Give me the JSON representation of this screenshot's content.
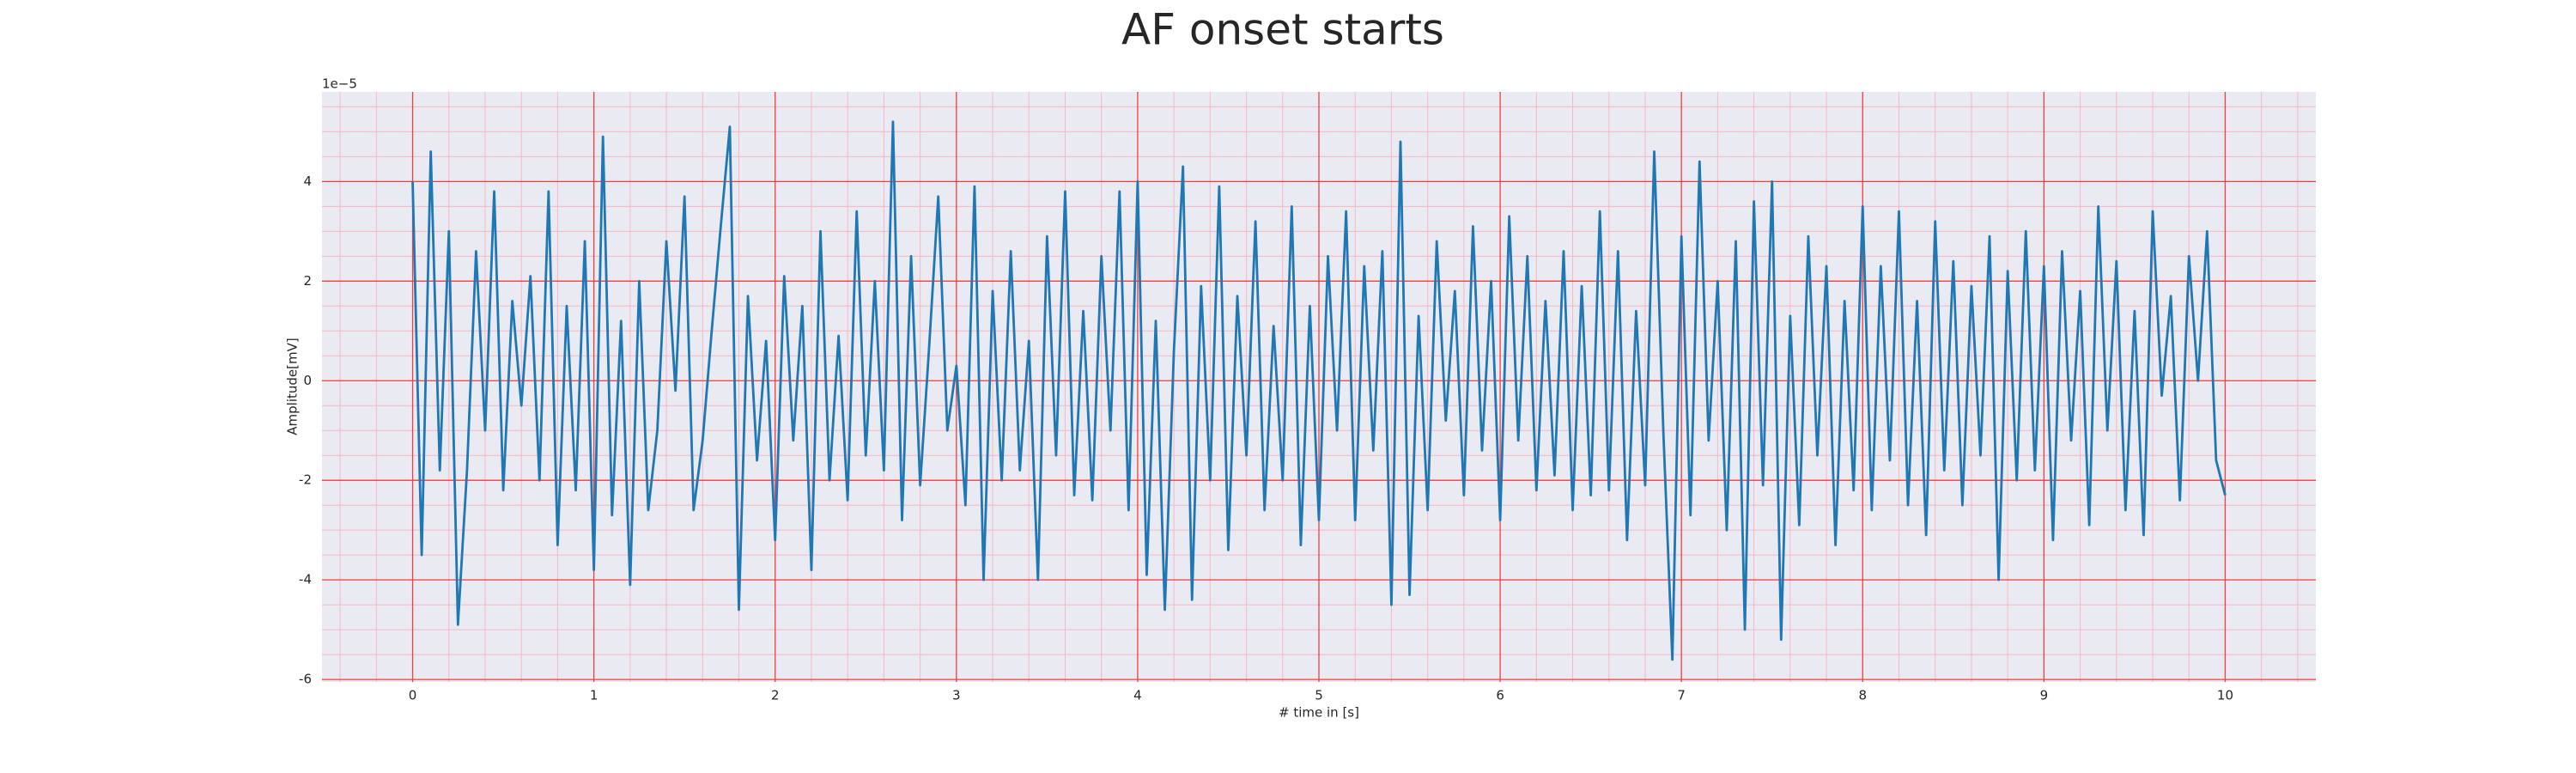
{
  "chart_data": {
    "type": "line",
    "title": "AF onset starts",
    "xlabel": "# time in [s]",
    "ylabel": "Amplitude[mV]",
    "y_offset_label": "1e−5",
    "color": "#1f77b4",
    "grid": true,
    "minor_grid": true,
    "xlim": [
      -0.5,
      10.5
    ],
    "ylim": [
      -6.05,
      5.8
    ],
    "xticks": [
      0,
      1,
      2,
      3,
      4,
      5,
      6,
      7,
      8,
      9,
      10
    ],
    "yticks": [
      -6,
      -4,
      -2,
      0,
      2,
      4
    ],
    "x": [
      0,
      0.05,
      0.1,
      0.15,
      0.2,
      0.25,
      0.3,
      0.35,
      0.4,
      0.45,
      0.5,
      0.55,
      0.6,
      0.65,
      0.7,
      0.75,
      0.8,
      0.85,
      0.9,
      0.95,
      1,
      1.05,
      1.1,
      1.15,
      1.2,
      1.25,
      1.3,
      1.35,
      1.4,
      1.45,
      1.5,
      1.55,
      1.6,
      1.65,
      1.7,
      1.75,
      1.8,
      1.85,
      1.9,
      1.95,
      2,
      2.05,
      2.1,
      2.15,
      2.2,
      2.25,
      2.3,
      2.35,
      2.4,
      2.45,
      2.5,
      2.55,
      2.6,
      2.65,
      2.7,
      2.75,
      2.8,
      2.85,
      2.9,
      2.95,
      3,
      3.05,
      3.1,
      3.15,
      3.2,
      3.25,
      3.3,
      3.35,
      3.4,
      3.45,
      3.5,
      3.55,
      3.6,
      3.65,
      3.7,
      3.75,
      3.8,
      3.85,
      3.9,
      3.95,
      4,
      4.05,
      4.1,
      4.15,
      4.2,
      4.25,
      4.3,
      4.35,
      4.4,
      4.45,
      4.5,
      4.55,
      4.6,
      4.65,
      4.7,
      4.75,
      4.8,
      4.85,
      4.9,
      4.95,
      5,
      5.05,
      5.1,
      5.15,
      5.2,
      5.25,
      5.3,
      5.35,
      5.4,
      5.45,
      5.5,
      5.55,
      5.6,
      5.65,
      5.7,
      5.75,
      5.8,
      5.85,
      5.9,
      5.95,
      6,
      6.05,
      6.1,
      6.15,
      6.2,
      6.25,
      6.3,
      6.35,
      6.4,
      6.45,
      6.5,
      6.55,
      6.6,
      6.65,
      6.7,
      6.75,
      6.8,
      6.85,
      6.9,
      6.95,
      7,
      7.05,
      7.1,
      7.15,
      7.2,
      7.25,
      7.3,
      7.35,
      7.4,
      7.45,
      7.5,
      7.55,
      7.6,
      7.65,
      7.7,
      7.75,
      7.8,
      7.85,
      7.9,
      7.95,
      8,
      8.05,
      8.1,
      8.15,
      8.2,
      8.25,
      8.3,
      8.35,
      8.4,
      8.45,
      8.5,
      8.55,
      8.6,
      8.65,
      8.7,
      8.75,
      8.8,
      8.85,
      8.9,
      8.95,
      9,
      9.05,
      9.1,
      9.15,
      9.2,
      9.25,
      9.3,
      9.35,
      9.4,
      9.45,
      9.5,
      9.55,
      9.6,
      9.65,
      9.7,
      9.75,
      9.8,
      9.85,
      9.9,
      9.95,
      10
    ],
    "values": [
      4.0,
      -3.5,
      4.6,
      -1.8,
      3.0,
      -4.9,
      -1.8,
      2.6,
      -1.0,
      3.8,
      -2.2,
      1.6,
      -0.5,
      2.1,
      -2.0,
      3.8,
      -3.3,
      1.5,
      -2.2,
      2.8,
      -3.8,
      4.9,
      -2.7,
      1.2,
      -4.1,
      2.0,
      -2.6,
      -1.0,
      2.8,
      -0.2,
      3.7,
      -2.6,
      -1.2,
      1.0,
      3.1,
      5.1,
      -4.6,
      1.7,
      -1.6,
      0.8,
      -3.2,
      2.1,
      -1.2,
      1.5,
      -3.8,
      3.0,
      -2.0,
      0.9,
      -2.4,
      3.4,
      -1.5,
      2.0,
      -1.8,
      5.2,
      -2.8,
      2.5,
      -2.1,
      0.7,
      3.7,
      -1.0,
      0.3,
      -2.5,
      3.9,
      -4.0,
      1.8,
      -2.0,
      2.6,
      -1.8,
      0.8,
      -4.0,
      2.9,
      -1.5,
      3.8,
      -2.3,
      1.4,
      -2.4,
      2.5,
      -1.0,
      3.8,
      -2.6,
      4.0,
      -3.9,
      1.2,
      -4.6,
      0.6,
      4.3,
      -4.4,
      1.9,
      -2.0,
      3.9,
      -3.4,
      1.7,
      -1.5,
      3.2,
      -2.6,
      1.1,
      -2.0,
      3.5,
      -3.3,
      1.5,
      -2.8,
      2.5,
      -1.0,
      3.4,
      -2.8,
      2.3,
      -1.4,
      2.6,
      -4.5,
      4.8,
      -4.3,
      1.3,
      -2.6,
      2.8,
      -0.8,
      1.8,
      -2.3,
      3.1,
      -1.4,
      2.0,
      -2.8,
      3.3,
      -1.2,
      2.5,
      -2.2,
      1.6,
      -1.9,
      2.6,
      -2.6,
      1.9,
      -2.3,
      3.4,
      -2.2,
      2.6,
      -3.2,
      1.4,
      -2.1,
      4.6,
      -1.0,
      -5.6,
      2.9,
      -2.7,
      4.4,
      -1.2,
      2.0,
      -3.0,
      2.8,
      -5.0,
      3.6,
      -2.1,
      4.0,
      -5.2,
      1.3,
      -2.9,
      2.9,
      -1.5,
      2.3,
      -3.3,
      1.6,
      -2.2,
      3.5,
      -2.6,
      2.3,
      -1.6,
      3.4,
      -2.5,
      1.6,
      -3.1,
      3.2,
      -1.8,
      2.4,
      -2.5,
      1.9,
      -1.5,
      2.9,
      -4.0,
      2.2,
      -2.0,
      3.0,
      -1.8,
      2.3,
      -3.2,
      2.6,
      -1.2,
      1.8,
      -2.9,
      3.5,
      -1.0,
      2.4,
      -2.6,
      1.4,
      -3.1,
      3.4,
      -0.3,
      1.7,
      -2.4,
      2.5,
      0.0,
      3.0,
      -1.6,
      -2.3
    ]
  }
}
